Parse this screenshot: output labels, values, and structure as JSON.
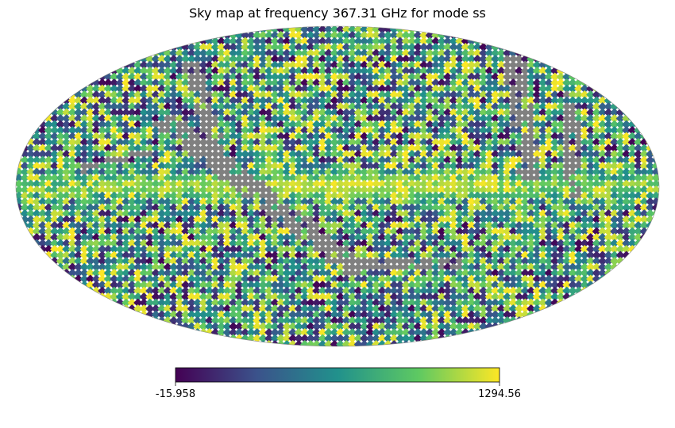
{
  "chart_data": {
    "type": "heatmap",
    "title": "Sky map at frequency 367.31 GHz for mode ss",
    "projection": "mollweide",
    "colormap": "viridis",
    "colormap_stops": [
      "#440154",
      "#3b528b",
      "#21918c",
      "#5ec962",
      "#fde725"
    ],
    "masked_color": "#808080",
    "colorbar": {
      "orientation": "horizontal",
      "min": -15.958,
      "max": 1294.56,
      "min_label": "-15.958",
      "max_label": "1294.56"
    }
  }
}
